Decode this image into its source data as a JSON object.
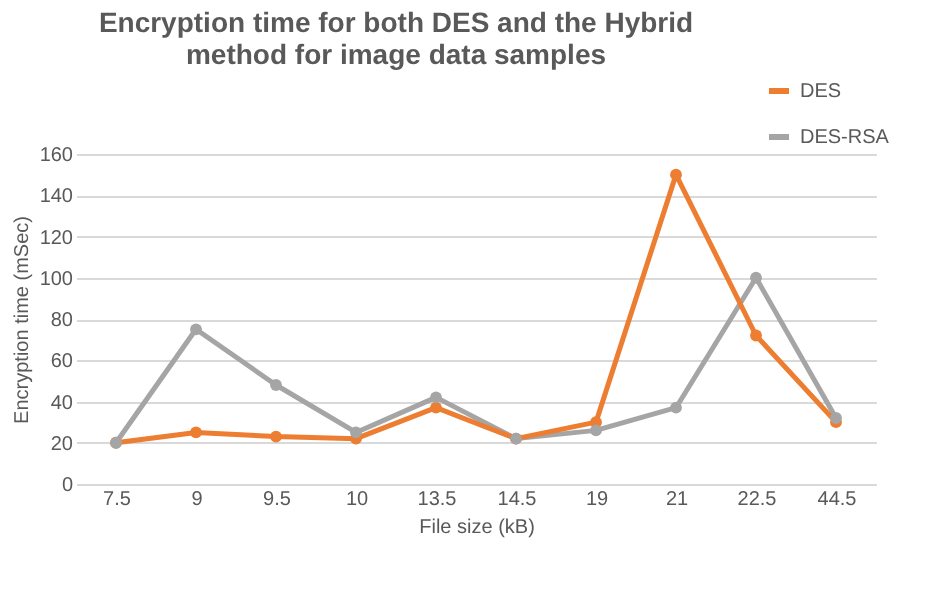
{
  "chart_data": {
    "type": "line",
    "title": [
      "Encryption time for both DES and the Hybrid",
      "method for image data samples"
    ],
    "xlabel": "File size (kB)",
    "ylabel": "Encryption time (mSec)",
    "categories": [
      "7.5",
      "9",
      "9.5",
      "10",
      "13.5",
      "14.5",
      "19",
      "21",
      "22.5",
      "44.5"
    ],
    "series": [
      {
        "name": "DES",
        "color": "#ed7d31",
        "values": [
          20,
          25,
          23,
          22,
          37,
          22,
          30,
          150,
          72,
          30
        ]
      },
      {
        "name": "DES-RSA",
        "color": "#a5a5a5",
        "values": [
          20,
          75,
          48,
          25,
          42,
          22,
          26,
          37,
          100,
          32
        ]
      }
    ],
    "ylim": [
      0,
      160
    ],
    "yticks": [
      0,
      20,
      40,
      60,
      80,
      100,
      120,
      140,
      160
    ],
    "grid": "y",
    "legend": "top right",
    "marker": "circle",
    "line_style": "solid"
  }
}
